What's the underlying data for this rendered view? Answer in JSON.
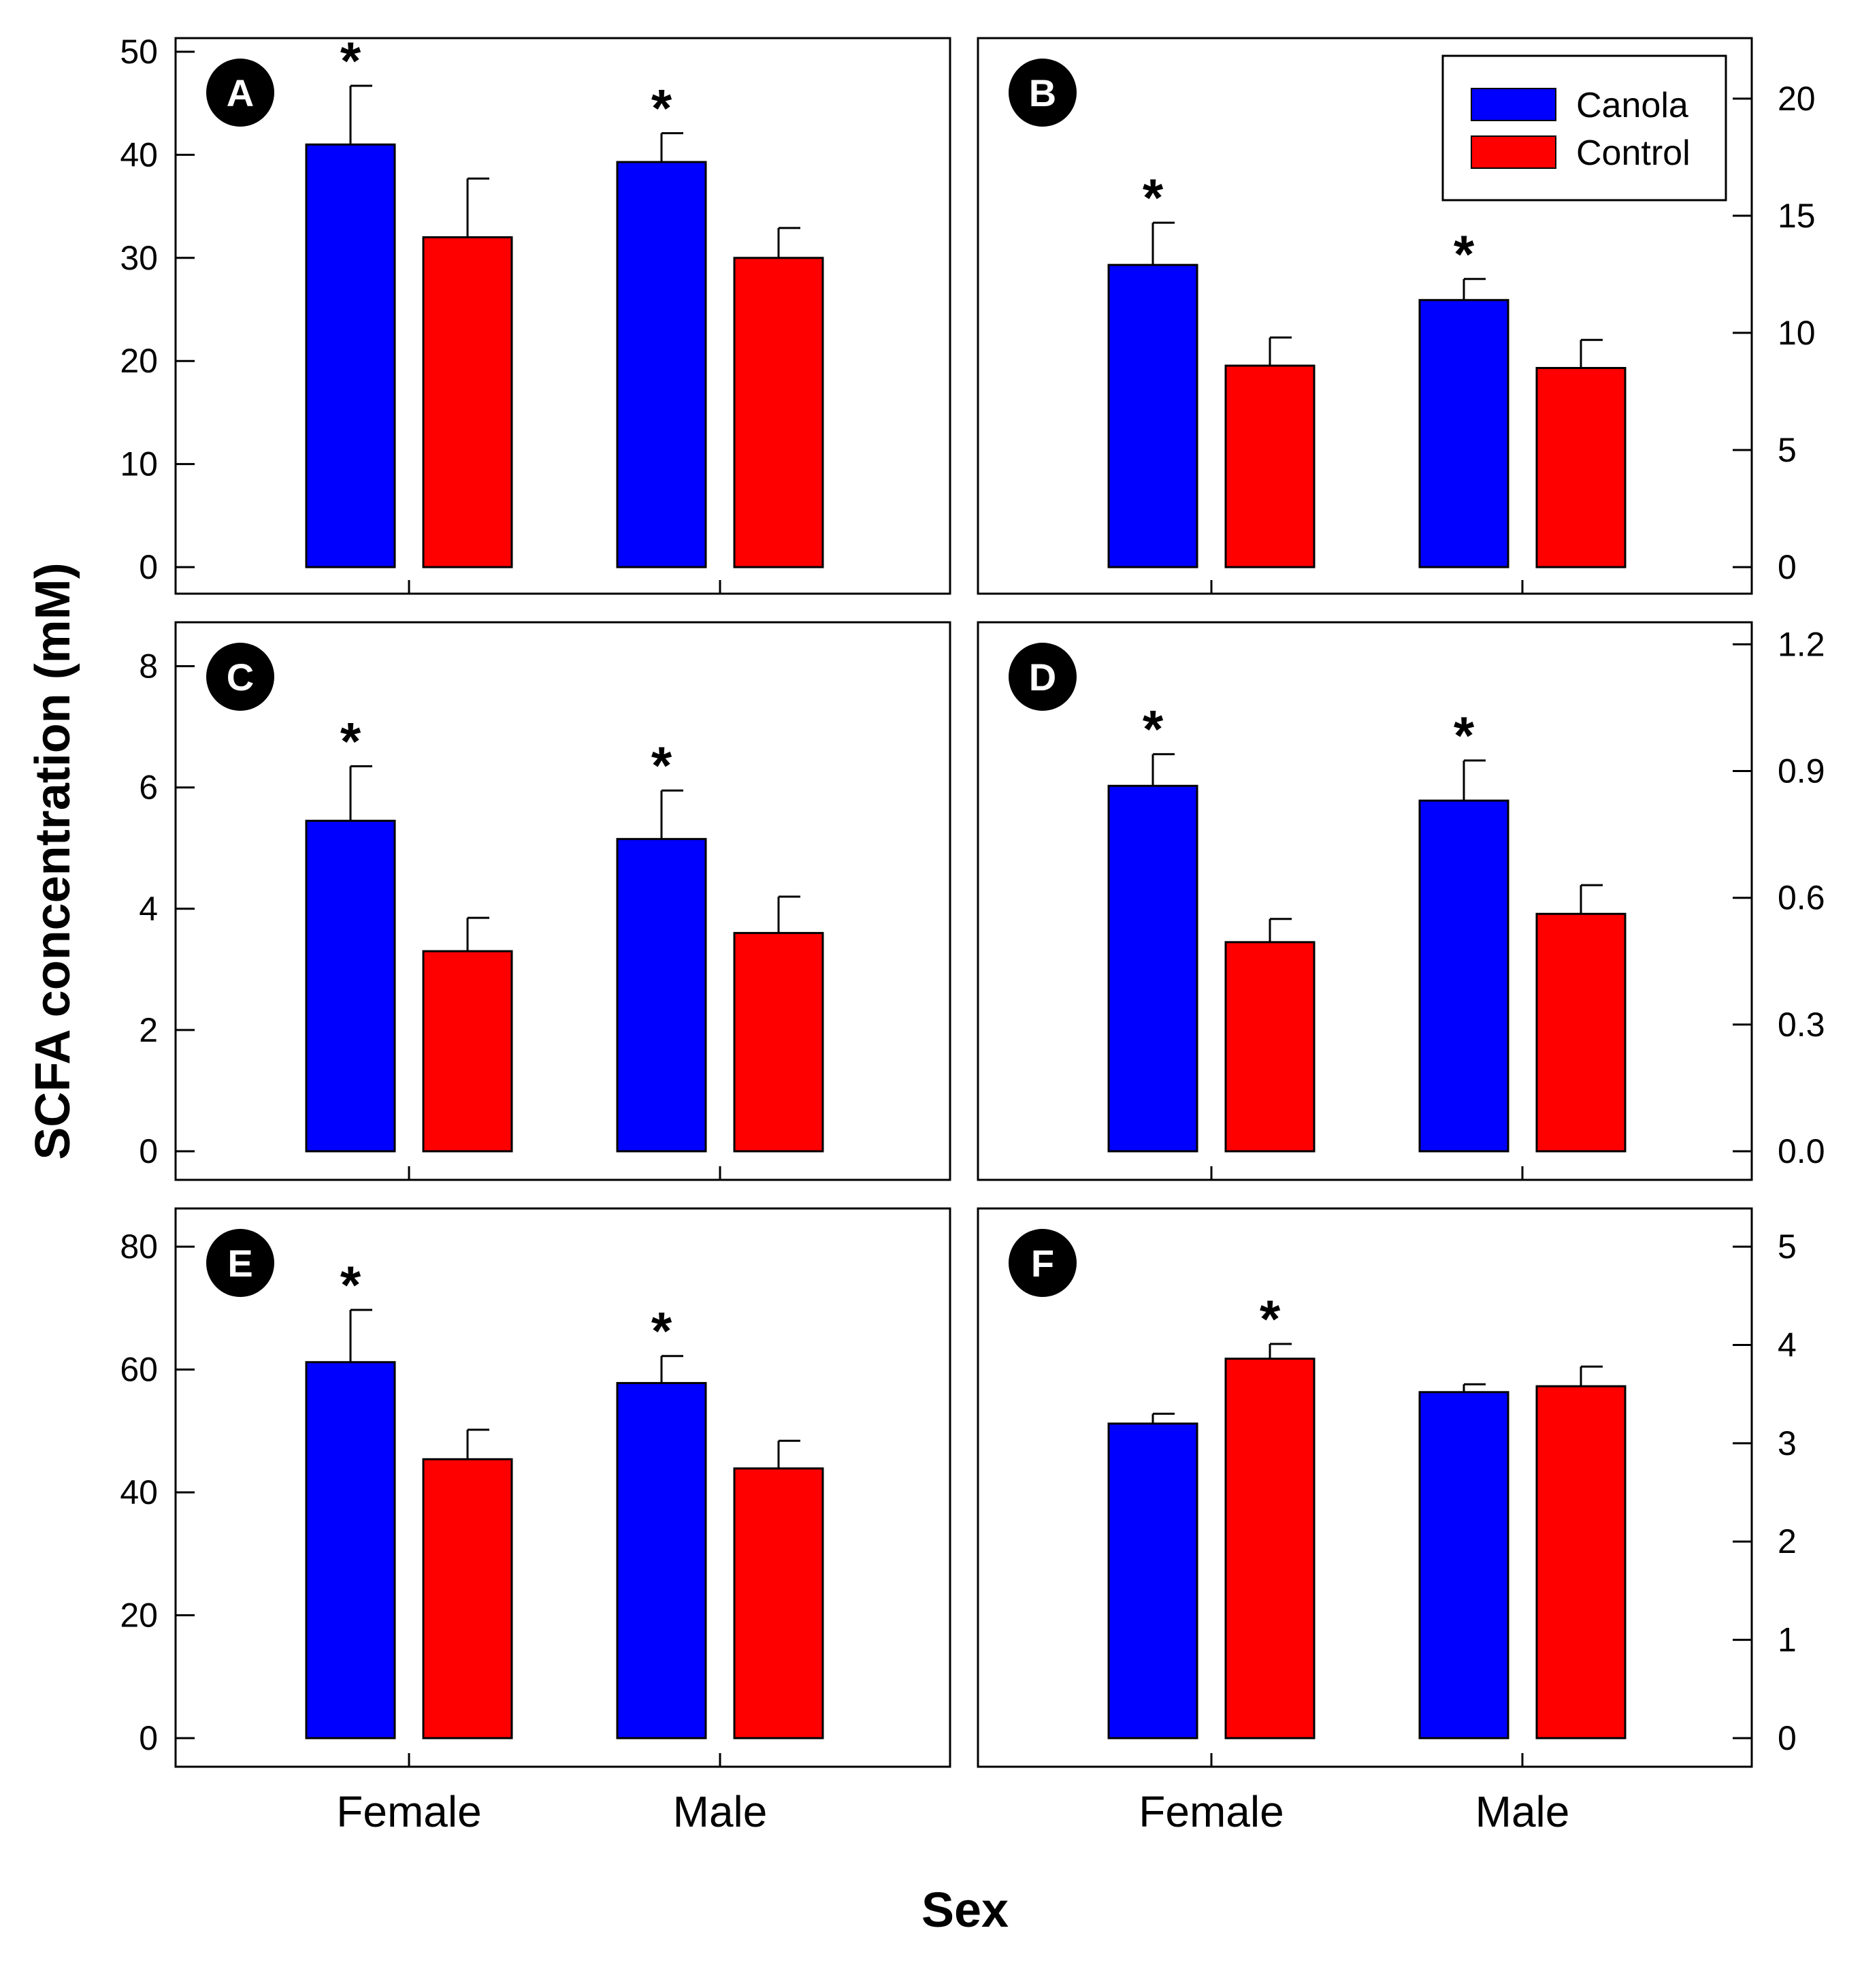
{
  "figure": {
    "ylabel": "SCFA concentration (mM)",
    "xlabel": "Sex"
  },
  "legend": {
    "entries": [
      {
        "name": "Canola",
        "color": "#0000ff"
      },
      {
        "name": "Control",
        "color": "#ff0000"
      }
    ]
  },
  "chart_data": [
    {
      "type": "bar",
      "panel": "A",
      "axis_side": "left",
      "categories": [
        "Female",
        "Male"
      ],
      "show_category_labels": false,
      "ylim": [
        0,
        50
      ],
      "yticks": [
        "0",
        "10",
        "20",
        "30",
        "40",
        "50"
      ],
      "series": [
        {
          "name": "Canola",
          "values": [
            41.0,
            39.3
          ],
          "errors": [
            5.7,
            2.8
          ],
          "significant": [
            true,
            true
          ]
        },
        {
          "name": "Control",
          "values": [
            32.0,
            30.0
          ],
          "errors": [
            5.7,
            2.9
          ],
          "significant": [
            false,
            false
          ]
        }
      ]
    },
    {
      "type": "bar",
      "panel": "B",
      "axis_side": "right",
      "categories": [
        "Female",
        "Male"
      ],
      "show_category_labels": false,
      "ylim": [
        0,
        22
      ],
      "yticks": [
        "0",
        "5",
        "10",
        "15",
        "20"
      ],
      "series": [
        {
          "name": "Canola",
          "values": [
            12.9,
            11.4
          ],
          "errors": [
            1.8,
            0.9
          ],
          "significant": [
            true,
            true
          ]
        },
        {
          "name": "Control",
          "values": [
            8.6,
            8.5
          ],
          "errors": [
            1.2,
            1.2
          ],
          "significant": [
            false,
            false
          ]
        }
      ]
    },
    {
      "type": "bar",
      "panel": "C",
      "axis_side": "left",
      "categories": [
        "Female",
        "Male"
      ],
      "show_category_labels": false,
      "ylim": [
        0,
        8.5
      ],
      "yticks": [
        "0",
        "2",
        "4",
        "6",
        "8"
      ],
      "series": [
        {
          "name": "Canola",
          "values": [
            5.45,
            5.15
          ],
          "errors": [
            0.9,
            0.8
          ],
          "significant": [
            true,
            true
          ]
        },
        {
          "name": "Control",
          "values": [
            3.3,
            3.6
          ],
          "errors": [
            0.55,
            0.6
          ],
          "significant": [
            false,
            false
          ]
        }
      ]
    },
    {
      "type": "bar",
      "panel": "D",
      "axis_side": "right",
      "categories": [
        "Female",
        "Male"
      ],
      "show_category_labels": false,
      "ylim": [
        0,
        1.22
      ],
      "yticks": [
        "0.0",
        "0.3",
        "0.6",
        "0.9",
        "1.2"
      ],
      "series": [
        {
          "name": "Canola",
          "values": [
            0.865,
            0.83
          ],
          "errors": [
            0.075,
            0.095
          ],
          "significant": [
            true,
            true
          ]
        },
        {
          "name": "Control",
          "values": [
            0.495,
            0.562
          ],
          "errors": [
            0.055,
            0.068
          ],
          "significant": [
            false,
            false
          ]
        }
      ]
    },
    {
      "type": "bar",
      "panel": "E",
      "axis_side": "left",
      "categories": [
        "Female",
        "Male"
      ],
      "show_category_labels": true,
      "ylim": [
        0,
        84
      ],
      "yticks": [
        "0",
        "20",
        "40",
        "60",
        "80"
      ],
      "series": [
        {
          "name": "Canola",
          "values": [
            61.2,
            57.8
          ],
          "errors": [
            8.5,
            4.4
          ],
          "significant": [
            true,
            true
          ]
        },
        {
          "name": "Control",
          "values": [
            45.4,
            43.9
          ],
          "errors": [
            4.8,
            4.5
          ],
          "significant": [
            false,
            false
          ]
        }
      ]
    },
    {
      "type": "bar",
      "panel": "F",
      "axis_side": "right",
      "categories": [
        "Female",
        "Male"
      ],
      "show_category_labels": true,
      "ylim": [
        0,
        5.25
      ],
      "yticks": [
        "0",
        "1",
        "2",
        "3",
        "4",
        "5"
      ],
      "series": [
        {
          "name": "Canola",
          "values": [
            3.2,
            3.52
          ],
          "errors": [
            0.1,
            0.08
          ],
          "significant": [
            false,
            false
          ]
        },
        {
          "name": "Control",
          "values": [
            3.86,
            3.58
          ],
          "errors": [
            0.15,
            0.2
          ],
          "significant": [
            true,
            false
          ]
        }
      ]
    }
  ]
}
